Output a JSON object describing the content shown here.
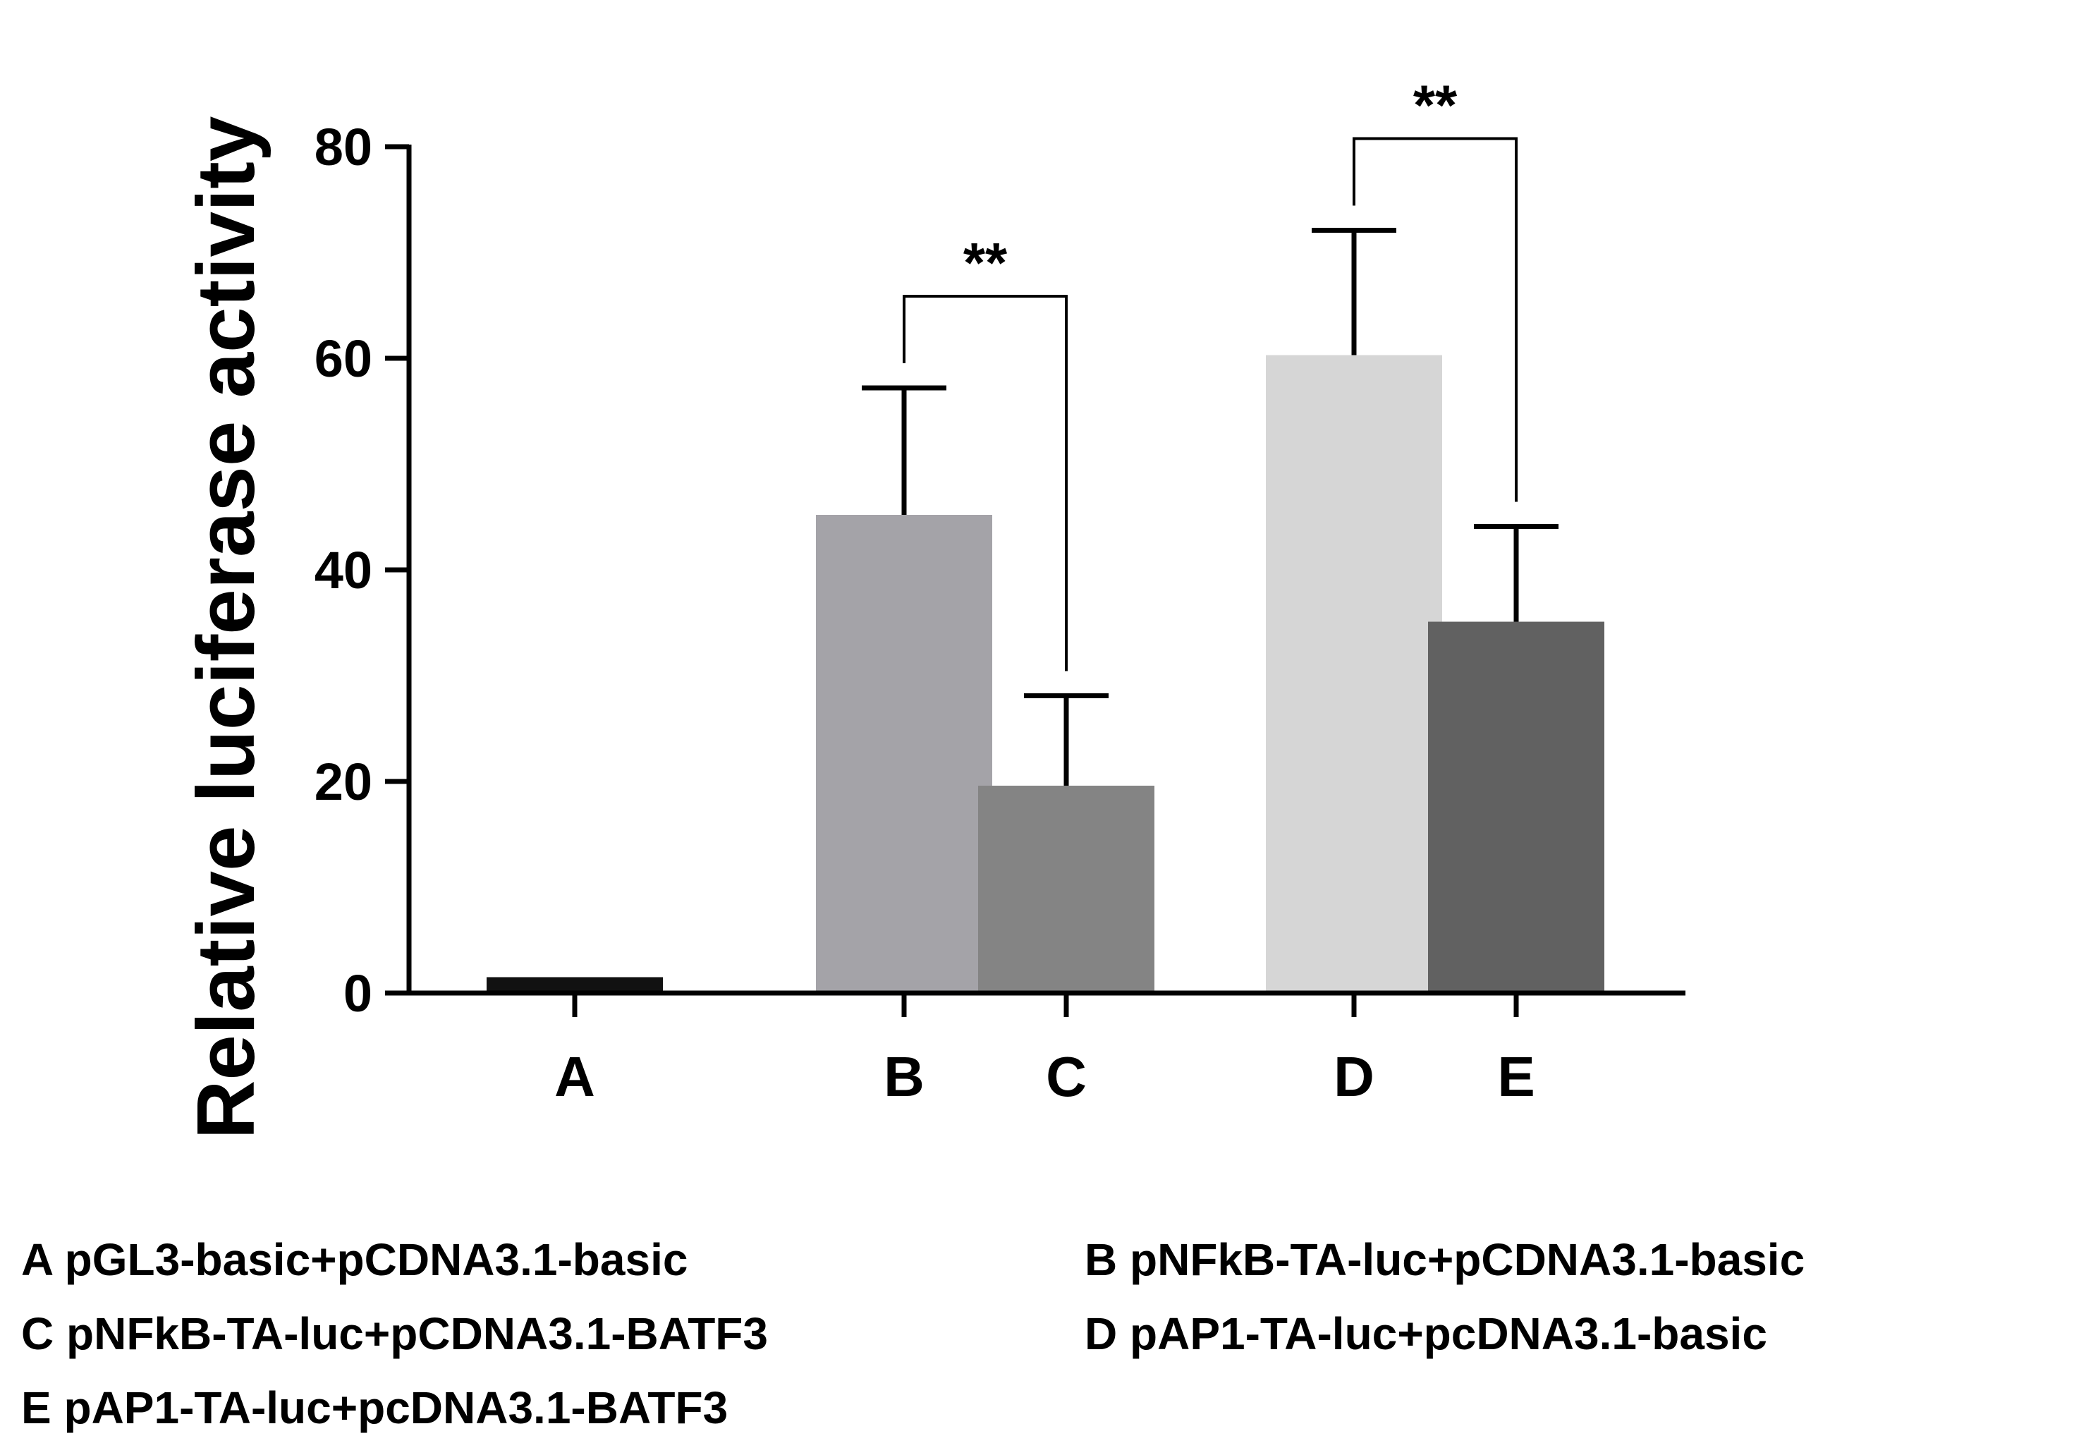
{
  "chart_data": {
    "type": "bar",
    "title": "",
    "xlabel": "",
    "ylabel": "Relative luciferase activity",
    "ylim": [
      0,
      80
    ],
    "yticks": [
      0,
      20,
      40,
      60,
      80
    ],
    "grid": false,
    "categories": [
      "A",
      "B",
      "C",
      "D",
      "E"
    ],
    "values": [
      1.5,
      45.2,
      19.6,
      60.3,
      35.1
    ],
    "errors": [
      0,
      12.0,
      8.5,
      11.8,
      9.0
    ],
    "colors": [
      "#111111",
      "#a4a3a8",
      "#848484",
      "#d6d6d6",
      "#616161"
    ],
    "groups": [
      [
        "A"
      ],
      [
        "B",
        "C"
      ],
      [
        "D",
        "E"
      ]
    ],
    "significance": [
      {
        "from": "B",
        "to": "C",
        "label": "**"
      },
      {
        "from": "D",
        "to": "E",
        "label": "**"
      }
    ],
    "legend": [
      "A pGL3-basic+pCDNA3.1-basic",
      "B pNFkB-TA-luc+pCDNA3.1-basic",
      "C pNFkB-TA-luc+pCDNA3.1-BATF3",
      "D pAP1-TA-luc+pcDNA3.1-basic",
      "E pAP1-TA-luc+pcDNA3.1-BATF3"
    ],
    "legend_position": "bottom"
  }
}
